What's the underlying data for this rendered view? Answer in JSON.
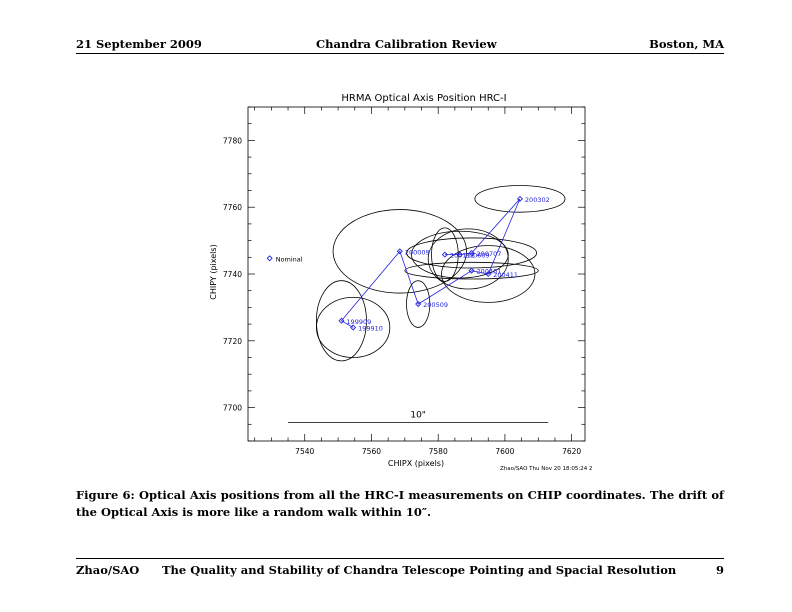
{
  "header": {
    "date": "21 September 2009",
    "title": "Chandra Calibration Review",
    "location": "Boston, MA"
  },
  "footer": {
    "author": "Zhao/SAO",
    "title": "The Quality and Stability of Chandra Telescope Pointing and Spacial Resolution",
    "page": "9"
  },
  "figure": {
    "caption": "Figure 6: Optical Axis positions from all the HRC-I measurements on CHIP coordinates. The drift of the Optical Axis is more like a random walk within 10″.",
    "scale_label": "10\"",
    "credit": "Zhao/SAO Thu Nov 20 18:05:24 2"
  },
  "colors": {
    "series": "#2222dd",
    "axes": "#000000",
    "ellipse": "#000000"
  },
  "chart_data": {
    "type": "scatter",
    "title": "HRMA Optical Axis Position  HRC-I",
    "xlabel": "CHIPX (pixels)",
    "ylabel": "CHIPY (pixels)",
    "xlim": [
      7523,
      7624
    ],
    "ylim": [
      7690,
      7790
    ],
    "xticks": [
      7540,
      7560,
      7580,
      7600,
      7620
    ],
    "yticks": [
      7700,
      7720,
      7740,
      7760,
      7780
    ],
    "grid": false,
    "nominal": {
      "label": "Nominal",
      "x": 7529.5,
      "y": 7744.7
    },
    "measurements": [
      {
        "label": "199910",
        "x": 7554.5,
        "y": 7724.0
      },
      {
        "label": "199909",
        "x": 7551.0,
        "y": 7726.0
      },
      {
        "label": "200009",
        "x": 7568.5,
        "y": 7746.8
      },
      {
        "label": "200509",
        "x": 7574.0,
        "y": 7731.0
      },
      {
        "label": "200401",
        "x": 7590.0,
        "y": 7741.0
      },
      {
        "label": "200411",
        "x": 7595.0,
        "y": 7740.0
      },
      {
        "label": "200302",
        "x": 7604.5,
        "y": 7762.5
      },
      {
        "label": "200707",
        "x": 7590.0,
        "y": 7746.3
      },
      {
        "label": "200609",
        "x": 7586.5,
        "y": 7745.8
      },
      {
        "label": "200112",
        "x": 7582.0,
        "y": 7745.8
      }
    ],
    "error_ellipses": [
      {
        "x": 7554.5,
        "y": 7724.0,
        "rx": 11.0,
        "ry": 9.0
      },
      {
        "x": 7551.0,
        "y": 7726.0,
        "rx": 7.5,
        "ry": 12.0
      },
      {
        "x": 7568.5,
        "y": 7746.8,
        "rx": 20.0,
        "ry": 12.5
      },
      {
        "x": 7574.0,
        "y": 7731.0,
        "rx": 3.5,
        "ry": 7.0
      },
      {
        "x": 7595.0,
        "y": 7740.0,
        "rx": 14.0,
        "ry": 8.5
      },
      {
        "x": 7604.5,
        "y": 7762.5,
        "rx": 13.5,
        "ry": 4.0
      },
      {
        "x": 7590.0,
        "y": 7746.3,
        "rx": 19.5,
        "ry": 4.5
      },
      {
        "x": 7586.5,
        "y": 7745.8,
        "rx": 14.5,
        "ry": 7.0
      },
      {
        "x": 7582.0,
        "y": 7745.8,
        "rx": 4.0,
        "ry": 8.0
      },
      {
        "x": 7590.0,
        "y": 7741.0,
        "rx": 20.0,
        "ry": 2.5
      },
      {
        "x": 7589.0,
        "y": 7744.5,
        "rx": 12.0,
        "ry": 9.0
      }
    ],
    "scale_bar": {
      "x_start": 7535.0,
      "x_end": 7613.0,
      "y": 7695.5
    }
  }
}
